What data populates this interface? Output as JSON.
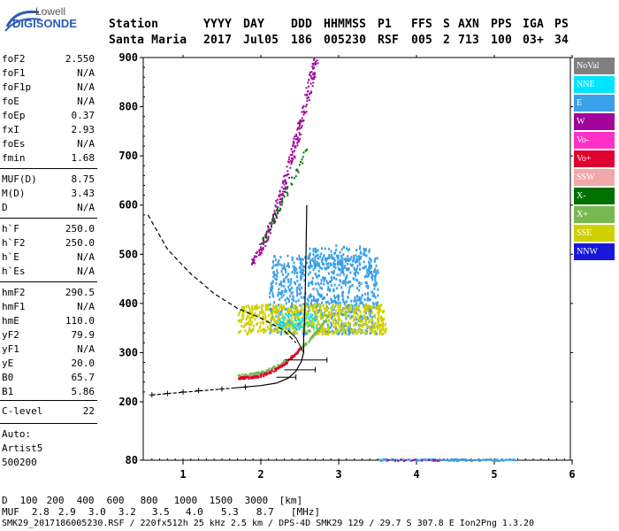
{
  "logo": {
    "line1": "Lowell",
    "line2": "DIGISONDE"
  },
  "header": {
    "labels": [
      "Station",
      "YYYY",
      "DAY",
      "DDD",
      "HHMMSS",
      "P1",
      "FFS",
      "S",
      "AXN",
      "PPS",
      "IGA",
      "PS"
    ],
    "values": [
      "Santa Maria",
      "2017",
      "Jul05",
      "186",
      "005230",
      "RSF",
      "005",
      "2",
      "713",
      "100",
      "03+",
      "34"
    ]
  },
  "params": [
    {
      "name": "foF2",
      "value": "2.550"
    },
    {
      "name": "foF1",
      "value": "N/A"
    },
    {
      "name": "foF1p",
      "value": "N/A"
    },
    {
      "name": "foE",
      "value": "N/A"
    },
    {
      "name": "foEp",
      "value": "0.37"
    },
    {
      "name": "fxI",
      "value": "2.93"
    },
    {
      "name": "foEs",
      "value": "N/A"
    },
    {
      "name": "fmin",
      "value": "1.68"
    },
    {
      "name": "MUF(D)",
      "value": "8.75"
    },
    {
      "name": "M(D)",
      "value": "3.43"
    },
    {
      "name": "D",
      "value": "N/A"
    },
    {
      "name": "h`F",
      "value": "250.0"
    },
    {
      "name": "h`F2",
      "value": "250.0"
    },
    {
      "name": "h`E",
      "value": "N/A"
    },
    {
      "name": "h`Es",
      "value": "N/A"
    },
    {
      "name": "hmF2",
      "value": "290.5"
    },
    {
      "name": "hmF1",
      "value": "N/A"
    },
    {
      "name": "hmE",
      "value": "110.0"
    },
    {
      "name": "yF2",
      "value": "79.9"
    },
    {
      "name": "yF1",
      "value": "N/A"
    },
    {
      "name": "yE",
      "value": "20.0"
    },
    {
      "name": "B0",
      "value": "65.7"
    },
    {
      "name": "B1",
      "value": "5.86"
    },
    {
      "name": "C-level",
      "value": "22"
    }
  ],
  "auto": {
    "label": "Auto:",
    "artist": "Artist5",
    "code": "500200"
  },
  "legend": [
    {
      "label": "NoVal",
      "color": "#808080"
    },
    {
      "label": "NNE",
      "color": "#00e5ff"
    },
    {
      "label": "E",
      "color": "#3aa0e8"
    },
    {
      "label": "W",
      "color": "#a0049c"
    },
    {
      "label": "Vo-",
      "color": "#ff30c8"
    },
    {
      "label": "Vo+",
      "color": "#e00030"
    },
    {
      "label": "SSW",
      "color": "#f0a8a8"
    },
    {
      "label": "X-",
      "color": "#007000"
    },
    {
      "label": "X+",
      "color": "#78b850"
    },
    {
      "label": "SSE",
      "color": "#d0d000"
    },
    {
      "label": "NNW",
      "color": "#1818d8"
    }
  ],
  "chart_data": {
    "type": "scatter",
    "xlabel": "",
    "ylabel": "",
    "xlim": [
      0.55,
      6.0
    ],
    "ylim": [
      80,
      900
    ],
    "x_ticks": [
      "1",
      "2",
      "3",
      "4",
      "5",
      "6"
    ],
    "y_ticks": [
      "80",
      "200",
      "300",
      "400",
      "500",
      "600",
      "700",
      "800",
      "900"
    ],
    "series": [
      {
        "name": "X+",
        "points": [
          [
            1.7,
            255
          ],
          [
            1.9,
            262
          ],
          [
            2.1,
            268
          ],
          [
            2.3,
            280
          ],
          [
            2.5,
            300
          ],
          [
            2.7,
            330
          ],
          [
            2.85,
            360
          ]
        ]
      },
      {
        "name": "Vo+",
        "points": [
          [
            1.7,
            252
          ],
          [
            1.9,
            256
          ],
          [
            2.1,
            265
          ],
          [
            2.25,
            275
          ],
          [
            2.4,
            290
          ],
          [
            2.5,
            310
          ]
        ]
      },
      {
        "name": "W",
        "points": [
          [
            1.85,
            490
          ],
          [
            2.0,
            510
          ],
          [
            2.2,
            560
          ],
          [
            2.4,
            640
          ],
          [
            2.6,
            720
          ],
          [
            2.65,
            780
          ],
          [
            2.68,
            890
          ]
        ]
      },
      {
        "name": "E",
        "points": [
          [
            2.1,
            360
          ],
          [
            2.4,
            400
          ],
          [
            2.7,
            430
          ],
          [
            3.0,
            470
          ],
          [
            3.3,
            500
          ],
          [
            3.5,
            420
          ]
        ]
      },
      {
        "name": "SSE",
        "points": [
          [
            1.7,
            345
          ],
          [
            2.2,
            360
          ],
          [
            2.6,
            375
          ],
          [
            3.0,
            390
          ],
          [
            3.4,
            380
          ],
          [
            3.6,
            360
          ]
        ]
      }
    ]
  },
  "footer": {
    "d_label": "D",
    "d_values": [
      "100",
      "200",
      "400",
      "600",
      "800",
      "1000",
      "1500",
      "3000",
      "[km]"
    ],
    "muf_label": "MUF",
    "muf_values": [
      "2.8",
      "2.9",
      "3.0",
      "3.2",
      "3.5",
      "4.0",
      "5.3",
      "8.7",
      "[MHz]"
    ],
    "status": "SMK29_2017186005230.RSF / 220fx512h 25 kHz 2.5 km / DPS-4D SMK29 129 / 29.7 S 307.8 E Ion2Png 1.3.20"
  }
}
